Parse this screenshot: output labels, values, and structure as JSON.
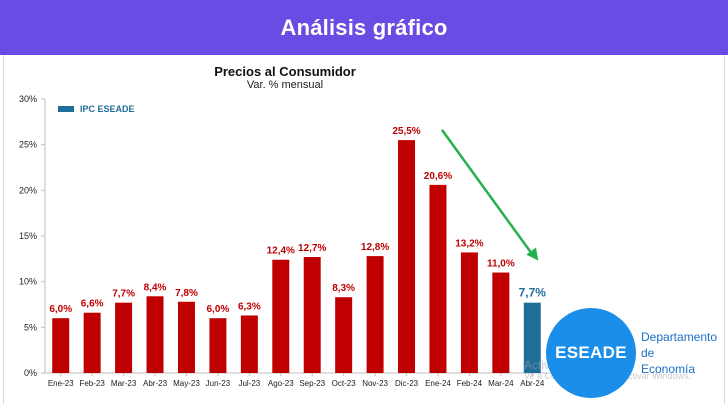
{
  "header": {
    "title": "Análisis gráfico"
  },
  "chart_data": {
    "type": "bar",
    "title": "Precios al Consumidor",
    "subtitle": "Var. % mensual",
    "legend": {
      "label": "IPC ESEADE",
      "placement": "top-left"
    },
    "categories": [
      "Ene-23",
      "Feb-23",
      "Mar-23",
      "Abr-23",
      "May-23",
      "Jun-23",
      "Jul-23",
      "Ago-23",
      "Sep-23",
      "Oct-23",
      "Nov-23",
      "Dic-23",
      "Ene-24",
      "Feb-24",
      "Mar-24",
      "Abr-24"
    ],
    "values": [
      6.0,
      6.6,
      7.7,
      8.4,
      7.8,
      6.0,
      6.3,
      12.4,
      12.7,
      8.3,
      12.8,
      25.5,
      20.6,
      13.2,
      11.0,
      7.7
    ],
    "labels": [
      "6,0%",
      "6,6%",
      "7,7%",
      "8,4%",
      "7,8%",
      "6,0%",
      "6,3%",
      "12,4%",
      "12,7%",
      "8,3%",
      "12,8%",
      "25,5%",
      "20,6%",
      "13,2%",
      "11,0%",
      "7,7%"
    ],
    "y_ticks": [
      0,
      5,
      10,
      15,
      20,
      25,
      30
    ],
    "y_tick_labels": [
      "0%",
      "5%",
      "10%",
      "15%",
      "20%",
      "25%",
      "30%"
    ],
    "ylim": [
      0,
      30
    ],
    "grid": false,
    "colors": {
      "bar": "#c00000",
      "highlight": "#1f6e99",
      "arrow": "#22b14c"
    },
    "highlight_index": 15,
    "annotation": {
      "type": "arrow",
      "from_index": 12,
      "to_index": 15
    }
  },
  "logo": {
    "text": "ESEADE"
  },
  "department": {
    "line1": "Departamento",
    "line2": "de",
    "line3": "Economía"
  },
  "watermark": {
    "line1": "Activar Windows",
    "line2": "Ve a Configuración para activar Windows."
  }
}
